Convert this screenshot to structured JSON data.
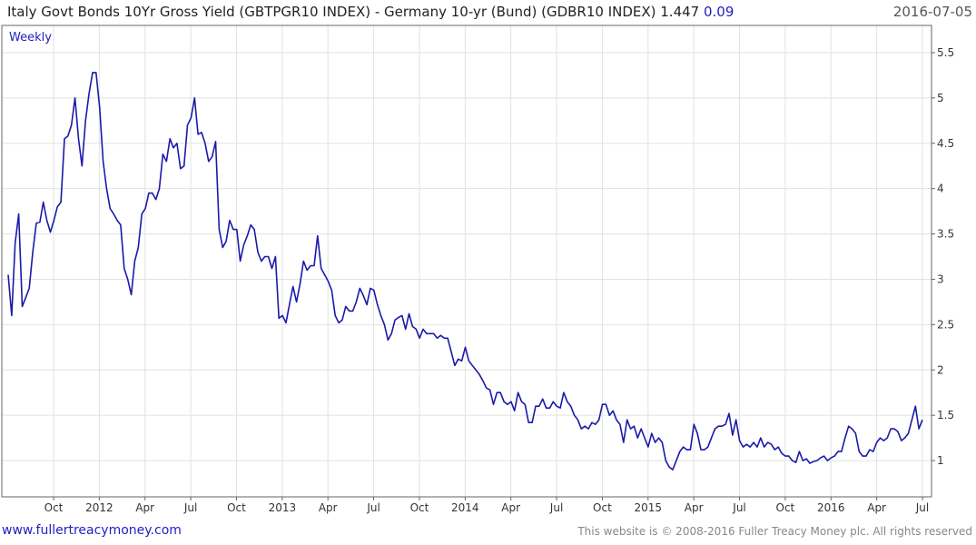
{
  "header": {
    "title": "Italy Govt Bonds 10Yr Gross Yield (GBTPGR10 INDEX) - Germany 10-yr (Bund)  (GDBR10 INDEX) 1.447",
    "change": "0.09",
    "date": "2016-07-05"
  },
  "footer": {
    "website": "www.fullertreacymoney.com",
    "copyright": "This website is © 2008-2016 Fuller Treacy Money plc. All rights reserved"
  },
  "colors": {
    "line": "#1a1aaa",
    "grid": "#e2e2e2",
    "accent": "#1f1fbf"
  },
  "chart_data": {
    "type": "line",
    "period_label": "Weekly",
    "y_axis_side": "right",
    "grid": true,
    "ylim": [
      0.6,
      5.8
    ],
    "y_ticks": [
      1,
      1.5,
      2,
      2.5,
      3,
      3.5,
      4,
      4.5,
      5,
      5.5
    ],
    "x_tick_labels": [
      "Oct",
      "2012",
      "Apr",
      "Jul",
      "Oct",
      "2013",
      "Apr",
      "Jul",
      "Oct",
      "2014",
      "Apr",
      "Jul",
      "Oct",
      "2015",
      "Apr",
      "Jul",
      "Oct",
      "2016",
      "Apr",
      "Jul"
    ],
    "series": [
      {
        "values": [
          3.05,
          2.6,
          3.4,
          3.72,
          2.7,
          2.8,
          2.9,
          3.3,
          3.62,
          3.63,
          3.85,
          3.65,
          3.52,
          3.65,
          3.8,
          3.85,
          4.55,
          4.58,
          4.7,
          5.0,
          4.55,
          4.25,
          4.75,
          5.05,
          5.28,
          5.28,
          4.9,
          4.3,
          4.0,
          3.78,
          3.72,
          3.65,
          3.6,
          3.12,
          3.0,
          2.83,
          3.2,
          3.35,
          3.72,
          3.78,
          3.95,
          3.95,
          3.88,
          4.0,
          4.38,
          4.3,
          4.55,
          4.45,
          4.5,
          4.22,
          4.25,
          4.7,
          4.78,
          5.0,
          4.6,
          4.62,
          4.5,
          4.3,
          4.35,
          4.52,
          3.55,
          3.35,
          3.42,
          3.65,
          3.55,
          3.55,
          3.2,
          3.38,
          3.48,
          3.6,
          3.55,
          3.3,
          3.2,
          3.25,
          3.25,
          3.12,
          3.25,
          2.57,
          2.6,
          2.52,
          2.72,
          2.92,
          2.75,
          2.95,
          3.2,
          3.1,
          3.15,
          3.15,
          3.48,
          3.12,
          3.05,
          2.98,
          2.88,
          2.6,
          2.52,
          2.55,
          2.7,
          2.65,
          2.65,
          2.75,
          2.9,
          2.82,
          2.72,
          2.9,
          2.88,
          2.72,
          2.6,
          2.5,
          2.33,
          2.4,
          2.55,
          2.58,
          2.6,
          2.45,
          2.62,
          2.48,
          2.45,
          2.35,
          2.45,
          2.4,
          2.4,
          2.4,
          2.35,
          2.38,
          2.35,
          2.35,
          2.2,
          2.05,
          2.12,
          2.1,
          2.25,
          2.1,
          2.05,
          2.0,
          1.95,
          1.88,
          1.8,
          1.78,
          1.62,
          1.75,
          1.75,
          1.65,
          1.62,
          1.65,
          1.55,
          1.75,
          1.65,
          1.62,
          1.42,
          1.42,
          1.6,
          1.6,
          1.68,
          1.58,
          1.58,
          1.65,
          1.6,
          1.58,
          1.75,
          1.65,
          1.6,
          1.5,
          1.45,
          1.35,
          1.38,
          1.35,
          1.42,
          1.4,
          1.45,
          1.62,
          1.62,
          1.5,
          1.55,
          1.45,
          1.4,
          1.2,
          1.45,
          1.35,
          1.38,
          1.25,
          1.35,
          1.25,
          1.15,
          1.3,
          1.2,
          1.25,
          1.2,
          1.0,
          0.93,
          0.9,
          1.0,
          1.1,
          1.15,
          1.12,
          1.12,
          1.4,
          1.3,
          1.12,
          1.12,
          1.15,
          1.25,
          1.35,
          1.38,
          1.38,
          1.4,
          1.52,
          1.28,
          1.45,
          1.22,
          1.15,
          1.18,
          1.15,
          1.2,
          1.15,
          1.25,
          1.15,
          1.2,
          1.18,
          1.12,
          1.15,
          1.08,
          1.05,
          1.05,
          1.0,
          0.98,
          1.1,
          1.0,
          1.02,
          0.97,
          0.99,
          1.0,
          1.03,
          1.05,
          1.0,
          1.03,
          1.05,
          1.1,
          1.1,
          1.25,
          1.38,
          1.35,
          1.3,
          1.1,
          1.05,
          1.05,
          1.12,
          1.1,
          1.2,
          1.25,
          1.22,
          1.25,
          1.35,
          1.35,
          1.32,
          1.22,
          1.25,
          1.3,
          1.45,
          1.6,
          1.35,
          1.45
        ]
      }
    ]
  }
}
